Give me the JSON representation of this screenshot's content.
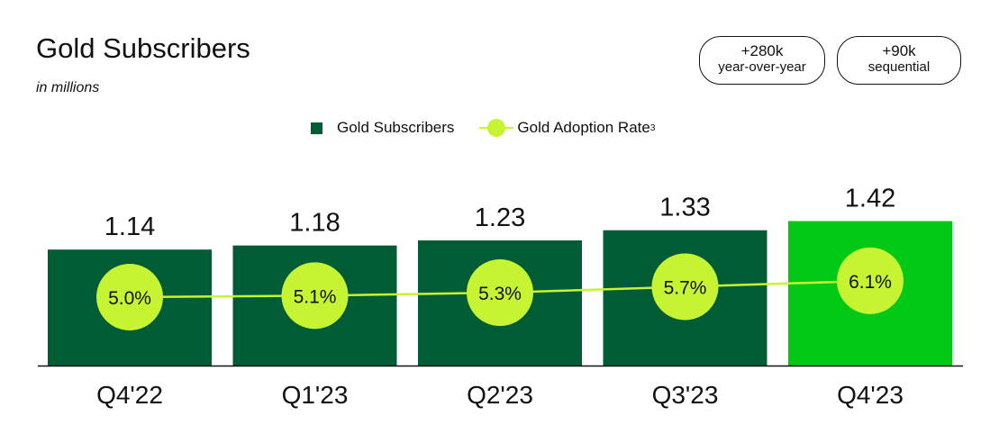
{
  "header": {
    "title": "Gold Subscribers",
    "subtitle": "in millions"
  },
  "badges": [
    {
      "value": "+280k",
      "label": "year-over-year"
    },
    {
      "value": "+90k",
      "label": "sequential"
    }
  ],
  "legend": {
    "bars_label": "Gold Subscribers",
    "line_label": "Gold Adoption Rate",
    "line_footnote": "3"
  },
  "colors": {
    "bar": "#005c35",
    "bar_highlight": "#00c916",
    "line": "#c6f432"
  },
  "chart_data": {
    "type": "bar",
    "categories": [
      "Q4'22",
      "Q1'23",
      "Q2'23",
      "Q3'23",
      "Q4'23"
    ],
    "series": [
      {
        "name": "Gold Subscribers",
        "type": "bar",
        "values": [
          1.14,
          1.18,
          1.23,
          1.33,
          1.42
        ],
        "labels": [
          "1.14",
          "1.18",
          "1.23",
          "1.33",
          "1.42"
        ]
      },
      {
        "name": "Gold Adoption Rate",
        "type": "line",
        "values": [
          5.0,
          5.1,
          5.3,
          5.7,
          6.1
        ],
        "labels": [
          "5.0%",
          "5.1%",
          "5.3%",
          "5.7%",
          "6.1%"
        ]
      }
    ],
    "highlight_index": 4
  }
}
